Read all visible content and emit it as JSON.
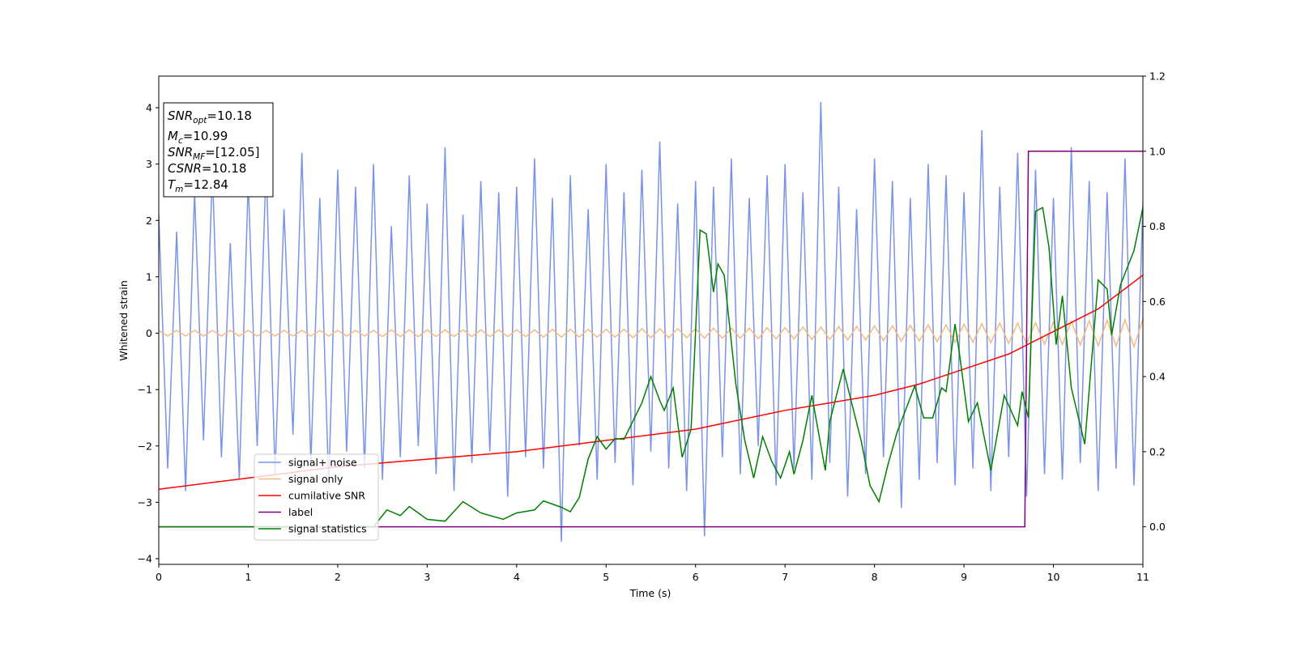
{
  "chart_data": {
    "type": "line",
    "xlabel": "Time (s)",
    "ylabel": "Whitened strain",
    "xlim": [
      0,
      11
    ],
    "xticks": [
      0,
      1,
      2,
      3,
      4,
      5,
      6,
      7,
      8,
      9,
      10,
      11
    ],
    "ylim": [
      -4.1,
      4.56
    ],
    "yticks": [
      {
        "value": -4,
        "label": "−4"
      },
      {
        "value": -3,
        "label": "−3"
      },
      {
        "value": -2,
        "label": "−2"
      },
      {
        "value": -1,
        "label": "−1"
      },
      0,
      1,
      2,
      3,
      4
    ],
    "y2lim": [
      -0.1,
      1.2
    ],
    "y2ticks": [
      {
        "value": 0,
        "label": "0.0"
      },
      0.2,
      0.4,
      0.6,
      0.8,
      {
        "value": 1,
        "label": "1.0"
      },
      1.2
    ],
    "legend": "lower left",
    "annotations": [
      {
        "symbol": "SNR",
        "sub": "opt",
        "text": "=10.18"
      },
      {
        "symbol": "M",
        "sub": "c",
        "text": "=10.99"
      },
      {
        "symbol": "SNR",
        "sub": "MF",
        "text": "=[12.05]"
      },
      {
        "symbol": "CSNR",
        "text": "=10.18"
      },
      {
        "symbol": "T",
        "sub": "m",
        "text": "=12.84"
      }
    ],
    "x": [
      0,
      0.1,
      0.2,
      0.3,
      0.4,
      0.5,
      0.6,
      0.7,
      0.8,
      0.9,
      1,
      1.1,
      1.2,
      1.3,
      1.4,
      1.5,
      1.6,
      1.7,
      1.8,
      1.9,
      2,
      2.1,
      2.2,
      2.3,
      2.4,
      2.5,
      2.6,
      2.7,
      2.8,
      2.9,
      3,
      3.1,
      3.2,
      3.3,
      3.4,
      3.5,
      3.6,
      3.7,
      3.8,
      3.9,
      4,
      4.1,
      4.2,
      4.3,
      4.4,
      4.5,
      4.6,
      4.7,
      4.8,
      4.9,
      5,
      5.1,
      5.2,
      5.3,
      5.4,
      5.5,
      5.6,
      5.7,
      5.8,
      5.9,
      6,
      6.1,
      6.2,
      6.3,
      6.4,
      6.5,
      6.6,
      6.7,
      6.8,
      6.9,
      7,
      7.1,
      7.2,
      7.3,
      7.4,
      7.5,
      7.6,
      7.7,
      7.8,
      7.9,
      8,
      8.1,
      8.2,
      8.3,
      8.4,
      8.5,
      8.6,
      8.7,
      8.8,
      8.9,
      9,
      9.1,
      9.2,
      9.3,
      9.4,
      9.5,
      9.6,
      9.7,
      9.8,
      9.9,
      10,
      10.1,
      10.2,
      10.3,
      10.4,
      10.5,
      10.6,
      10.7,
      10.8,
      10.9,
      11
    ],
    "series": [
      {
        "name": "signal+ noise",
        "color": "#7b93e6",
        "values": [
          2.1,
          -2.4,
          1.8,
          -2.8,
          2.5,
          -1.9,
          2.9,
          -2.2,
          1.6,
          -2.6,
          2.7,
          -2.0,
          3.0,
          -2.5,
          2.2,
          -1.8,
          3.2,
          -2.3,
          2.4,
          -2.7,
          2.9,
          -2.1,
          2.6,
          -2.4,
          3.0,
          -2.6,
          1.9,
          -2.2,
          2.8,
          -2.0,
          2.3,
          -2.5,
          3.3,
          -2.8,
          2.1,
          -2.3,
          2.7,
          -2.1,
          2.5,
          -2.9,
          2.6,
          -2.2,
          3.1,
          -2.4,
          2.4,
          -3.7,
          2.8,
          -2.0,
          2.2,
          -2.6,
          3.0,
          -2.3,
          2.5,
          -2.7,
          2.9,
          -2.1,
          3.4,
          -2.4,
          2.3,
          -2.8,
          2.7,
          -3.6,
          2.6,
          -2.2,
          3.1,
          -2.5,
          2.4,
          -2.0,
          2.8,
          -2.7,
          3.0,
          -2.4,
          2.5,
          -2.6,
          4.1,
          -2.3,
          2.6,
          -2.9,
          2.2,
          -2.5,
          3.1,
          -2.2,
          2.7,
          -3.1,
          2.4,
          -2.6,
          3.0,
          -2.3,
          2.8,
          -2.7,
          2.5,
          -2.4,
          3.6,
          -2.8,
          2.6,
          -2.2,
          3.2,
          -2.9,
          2.9,
          -2.5,
          2.4,
          -2.6,
          3.3,
          -2.3,
          2.7,
          -2.8,
          2.5,
          -2.4,
          3.1,
          -2.7,
          2.3
        ]
      },
      {
        "name": "signal only",
        "color": "#f5b97f",
        "values": [
          0.05,
          -0.05,
          0.05,
          -0.05,
          0.05,
          -0.05,
          0.05,
          -0.05,
          0.05,
          -0.05,
          0.05,
          -0.05,
          0.05,
          -0.05,
          0.05,
          -0.05,
          0.05,
          -0.05,
          0.05,
          -0.05,
          0.05,
          -0.05,
          0.05,
          -0.05,
          0.05,
          -0.06,
          0.06,
          -0.06,
          0.06,
          -0.06,
          0.06,
          -0.06,
          0.06,
          -0.06,
          0.06,
          -0.06,
          0.06,
          -0.06,
          0.06,
          -0.06,
          0.06,
          -0.06,
          0.06,
          -0.07,
          0.07,
          -0.07,
          0.07,
          -0.07,
          0.07,
          -0.07,
          0.07,
          -0.07,
          0.07,
          -0.08,
          0.08,
          -0.08,
          0.08,
          -0.08,
          0.08,
          -0.08,
          0.08,
          -0.09,
          0.09,
          -0.09,
          0.09,
          -0.09,
          0.09,
          -0.1,
          0.1,
          -0.1,
          0.1,
          -0.1,
          0.11,
          -0.11,
          0.11,
          -0.11,
          0.12,
          -0.12,
          0.12,
          -0.12,
          0.13,
          -0.13,
          0.13,
          -0.14,
          0.14,
          -0.14,
          0.15,
          -0.15,
          0.15,
          -0.16,
          0.16,
          -0.16,
          0.17,
          -0.17,
          0.18,
          -0.18,
          0.18,
          -0.19,
          0.19,
          -0.2,
          0.2,
          -0.2,
          0.21,
          -0.21,
          0.22,
          -0.22,
          0.23,
          -0.23,
          0.24,
          -0.24,
          0.25
        ]
      },
      {
        "name": "cumilative SNR",
        "color": "red",
        "axis": "y2",
        "x": [
          0,
          1,
          2,
          3,
          4,
          5,
          6,
          7,
          8,
          8.5,
          9,
          9.5,
          10,
          10.5,
          11
        ],
        "values": [
          0.1,
          0.13,
          0.16,
          0.18,
          0.2,
          0.23,
          0.26,
          0.31,
          0.35,
          0.38,
          0.42,
          0.46,
          0.52,
          0.58,
          0.67
        ]
      },
      {
        "name": "label",
        "color": "purple",
        "axis": "y2",
        "x": [
          0,
          9.68,
          9.72,
          11
        ],
        "values": [
          0,
          0,
          1,
          1
        ]
      },
      {
        "name": "signal statistics",
        "color": "green",
        "axis": "y2",
        "x": [
          0,
          2.4,
          2.55,
          2.7,
          2.8,
          3.0,
          3.2,
          3.4,
          3.6,
          3.85,
          4.0,
          4.2,
          4.3,
          4.5,
          4.6,
          4.7,
          4.8,
          4.9,
          5.0,
          5.1,
          5.2,
          5.4,
          5.5,
          5.6,
          5.65,
          5.75,
          5.85,
          5.95,
          6.0,
          6.05,
          6.12,
          6.2,
          6.25,
          6.32,
          6.45,
          6.55,
          6.65,
          6.75,
          6.85,
          6.95,
          7.05,
          7.1,
          7.2,
          7.3,
          7.45,
          7.5,
          7.65,
          7.75,
          7.85,
          7.95,
          8.05,
          8.15,
          8.25,
          8.45,
          8.55,
          8.65,
          8.75,
          8.8,
          8.9,
          8.95,
          9.05,
          9.15,
          9.3,
          9.45,
          9.6,
          9.65,
          9.72,
          9.8,
          9.88,
          9.95,
          10.03,
          10.1,
          10.2,
          10.35,
          10.5,
          10.6,
          10.65,
          10.75,
          10.9,
          11.0
        ],
        "values": [
          0,
          0,
          0.045,
          0.03,
          0.054,
          0.02,
          0.015,
          0.067,
          0.037,
          0.02,
          0.037,
          0.045,
          0.069,
          0.052,
          0.04,
          0.078,
          0.181,
          0.24,
          0.207,
          0.235,
          0.233,
          0.33,
          0.4,
          0.336,
          0.31,
          0.37,
          0.185,
          0.26,
          0.52,
          0.79,
          0.78,
          0.625,
          0.7,
          0.67,
          0.38,
          0.23,
          0.13,
          0.24,
          0.175,
          0.13,
          0.2,
          0.14,
          0.23,
          0.35,
          0.15,
          0.28,
          0.42,
          0.325,
          0.23,
          0.11,
          0.067,
          0.165,
          0.25,
          0.375,
          0.29,
          0.29,
          0.37,
          0.36,
          0.54,
          0.46,
          0.28,
          0.33,
          0.15,
          0.35,
          0.27,
          0.36,
          0.29,
          0.84,
          0.85,
          0.745,
          0.485,
          0.615,
          0.37,
          0.22,
          0.657,
          0.633,
          0.51,
          0.645,
          0.735,
          0.85
        ]
      }
    ]
  }
}
